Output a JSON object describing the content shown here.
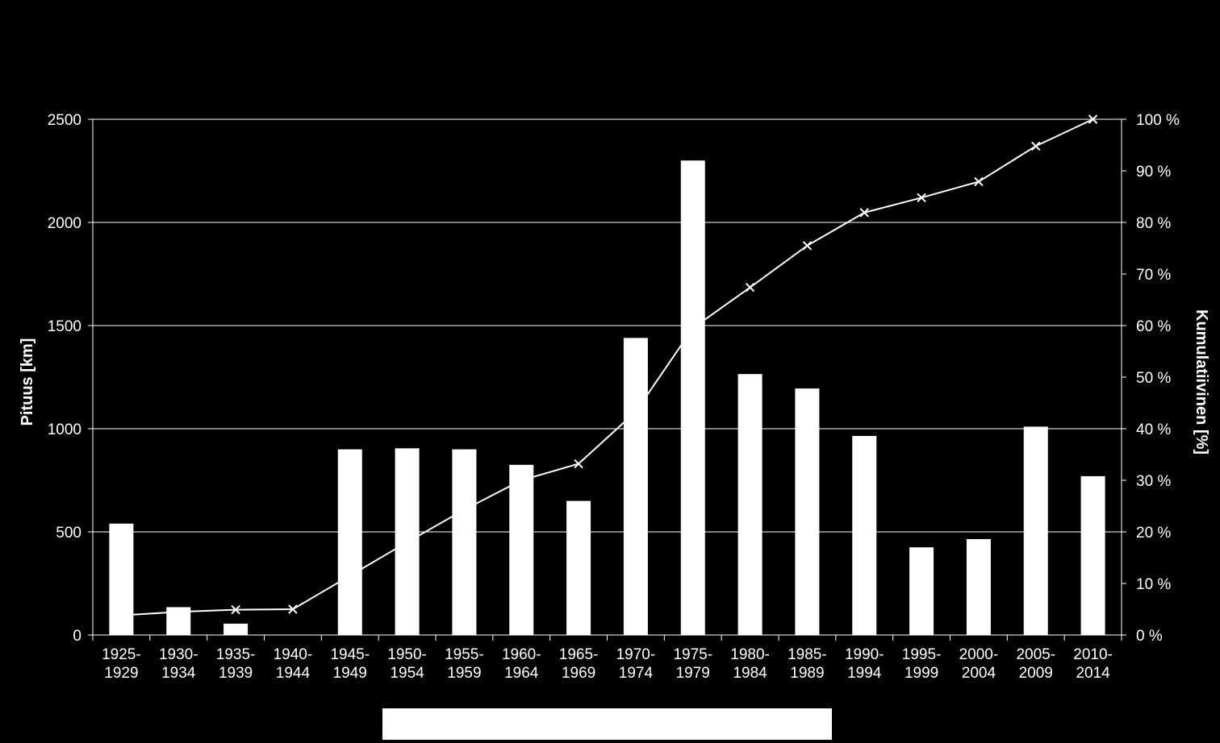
{
  "chart_data": {
    "type": "bar",
    "categories": [
      [
        "1925-",
        "1929"
      ],
      [
        "1930-",
        "1934"
      ],
      [
        "1935-",
        "1939"
      ],
      [
        "1940-",
        "1944"
      ],
      [
        "1945-",
        "1949"
      ],
      [
        "1950-",
        "1954"
      ],
      [
        "1955-",
        "1959"
      ],
      [
        "1960-",
        "1964"
      ],
      [
        "1965-",
        "1969"
      ],
      [
        "1970-",
        "1974"
      ],
      [
        "1975-",
        "1979"
      ],
      [
        "1980-",
        "1984"
      ],
      [
        "1985-",
        "1989"
      ],
      [
        "1990-",
        "1994"
      ],
      [
        "1995-",
        "1999"
      ],
      [
        "2000-",
        "2004"
      ],
      [
        "2005-",
        "2009"
      ],
      [
        "2010-",
        "2014"
      ]
    ],
    "series": [
      {
        "type": "bar",
        "axis": "left",
        "values": [
          540,
          135,
          55,
          0,
          900,
          905,
          900,
          825,
          650,
          1440,
          2300,
          1265,
          1195,
          965,
          425,
          465,
          1010,
          770
        ]
      },
      {
        "type": "line",
        "axis": "right",
        "marker": "x",
        "values": [
          3.8,
          4.5,
          4.9,
          5.0,
          11.5,
          18.0,
          24.3,
          30.0,
          33.2,
          43.3,
          59.5,
          67.4,
          75.5,
          81.9,
          84.8,
          87.9,
          94.8,
          100
        ]
      }
    ],
    "ylabel": "Pituus [km]",
    "ylabel_right": "Kumulatiivinen [%]",
    "ylim": [
      0,
      2500
    ],
    "yticks": [
      "0",
      "500",
      "1000",
      "1500",
      "2000",
      "2500"
    ],
    "ylim_right": [
      0,
      100
    ],
    "yticks_right": [
      "0 %",
      "10 %",
      "20 %",
      "30 %",
      "40 %",
      "50 %",
      "60 %",
      "70 %",
      "80 %",
      "90 %",
      "100 %"
    ],
    "grid": true,
    "legend": "none",
    "colors": {
      "background": "#000000",
      "bars": "#ffffff",
      "line": "#ffffff",
      "grid": "#ffffff"
    }
  }
}
